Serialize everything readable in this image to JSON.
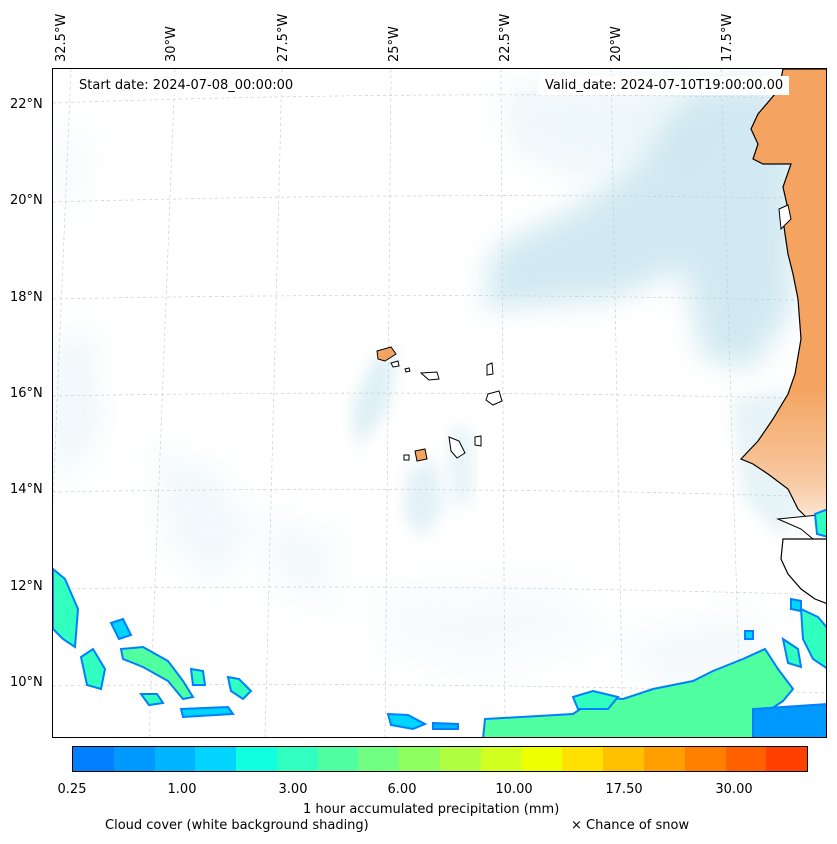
{
  "map": {
    "start_date": "Start date: 2024-07-08_00:00:00",
    "valid_date": "Valid_date: 2024-07-10T19:00:00.00",
    "longitude_labels": [
      "32.5°W",
      "30°W",
      "27.5°W",
      "25°W",
      "22.5°W",
      "20°W",
      "17.5°W"
    ],
    "latitude_labels": [
      "22°N",
      "20°N",
      "18°N",
      "16°N",
      "14°N",
      "12°N",
      "10°N"
    ],
    "colors": {
      "land": "#f4a460",
      "cloud": "#add8e6",
      "coastline": "#000000"
    }
  },
  "colorbar": {
    "title": "1 hour accumulated precipitation (mm)",
    "tick_labels": [
      "0.25",
      "1.00",
      "3.00",
      "6.00",
      "10.00",
      "17.50",
      "30.00"
    ],
    "colors": [
      "#0080ff",
      "#0099ff",
      "#00b4ff",
      "#00d4ff",
      "#10ffe0",
      "#30ffc0",
      "#50ffa0",
      "#70ff80",
      "#90ff60",
      "#b0ff40",
      "#d0ff20",
      "#f0ff00",
      "#ffe000",
      "#ffc000",
      "#ffa000",
      "#ff8000",
      "#ff6000",
      "#ff4000"
    ]
  },
  "legend": {
    "cloud_caption": "Cloud cover (white background shading)",
    "snow_caption": "× Chance of snow"
  }
}
